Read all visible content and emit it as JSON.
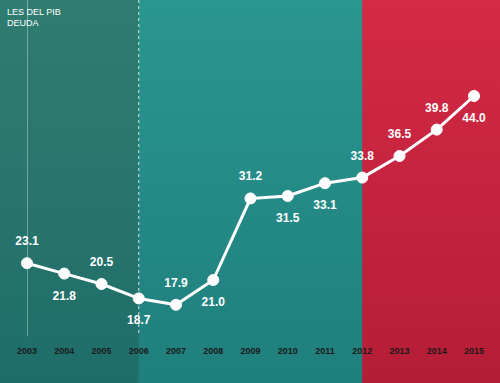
{
  "chart_data": {
    "type": "line",
    "title": "LES DEL PIB",
    "subtitle": "DEUDA",
    "categories": [
      "2003",
      "2004",
      "2005",
      "2006",
      "2007",
      "2008",
      "2009",
      "2010",
      "2011",
      "2012",
      "2013",
      "2014",
      "2015"
    ],
    "values": [
      23.1,
      21.8,
      20.5,
      18.7,
      17.9,
      21.0,
      31.2,
      31.5,
      33.1,
      33.8,
      36.5,
      39.8,
      44.0
    ],
    "value_labels": [
      "23.1",
      "21.8",
      "20.5",
      "18.7",
      "17.9",
      "21.0",
      "31.2",
      "31.5",
      "33.1",
      "33.8",
      "36.5",
      "39.8",
      "44.0"
    ],
    "color": "#ffffff",
    "marker": "circle",
    "ylim": [
      14,
      56
    ],
    "data_labels": true,
    "tick_labels": "x",
    "grid": false
  }
}
